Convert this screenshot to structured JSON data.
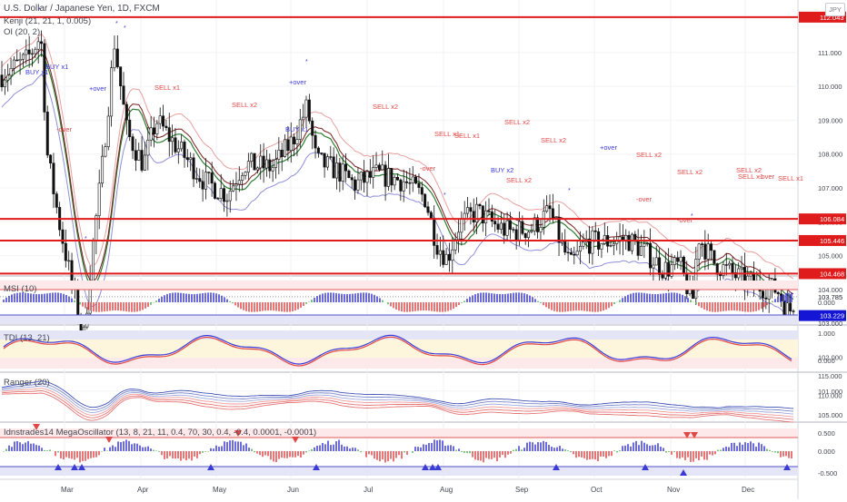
{
  "header": {
    "title": "U.S. Dollar / Japanese Yen, 1D, FXCM",
    "currency_badge": "JPY",
    "indicator_kenji": "Kenji (21, 21, 1, 0.005)",
    "indicator_oi": "OI (20, 2)"
  },
  "panes": {
    "msi": "MSI (10)",
    "tdi": "TDI (13, 21)",
    "ranger": "Ranger (20)",
    "mega": "Idnstrades14 MegaOscillator (13, 8, 21, 11, 0.4, 70, 30, 0.4, -0.4, 0.0001, -0.0001)"
  },
  "chart_data": {
    "type": "candlestick",
    "title": "U.S. Dollar / Japanese Yen, 1D, FXCM",
    "x_month_labels": [
      "Mar",
      "Apr",
      "May",
      "Jun",
      "Jul",
      "Aug",
      "Sep",
      "Oct",
      "Nov",
      "Dec"
    ],
    "price_axis": {
      "ticks": [
        "111.000",
        "110.000",
        "109.000",
        "108.000",
        "107.000",
        "106.000",
        "105.000",
        "104.000",
        "103.000",
        "102.000",
        "101.000"
      ],
      "range": [
        100.5,
        112.5
      ]
    },
    "horizontal_levels": [
      {
        "value": 112.043,
        "label": "112.043",
        "color": "#e01b1b"
      },
      {
        "value": 106.084,
        "label": "106.084",
        "color": "#e01b1b"
      },
      {
        "value": 105.446,
        "label": "105.446",
        "color": "#e01b1b"
      },
      {
        "value": 104.468,
        "label": "104.468",
        "color": "#e01b1b"
      },
      {
        "value": 103.229,
        "label": "103.229",
        "color": "#1515d6"
      }
    ],
    "last_price": {
      "value": 103.785,
      "label": "103.785"
    },
    "signals": [
      {
        "text": "BUY x1",
        "color": "#3b3bd6"
      },
      {
        "text": "BUY x1",
        "color": "#3b3bd6"
      },
      {
        "text": "+over",
        "color": "#3b3bd6"
      },
      {
        "text": "-over",
        "color": "#e04848"
      },
      {
        "text": "SELL x1",
        "color": "#e04848"
      },
      {
        "text": "SELL x2",
        "color": "#e04848"
      },
      {
        "text": "+over",
        "color": "#3b3bd6"
      },
      {
        "text": "BUY x1",
        "color": "#3b3bd6"
      },
      {
        "text": "SELL x2",
        "color": "#e04848"
      },
      {
        "text": "SELL x1",
        "color": "#e04848"
      },
      {
        "text": "SELL x1",
        "color": "#e04848"
      },
      {
        "text": "SELL x2",
        "color": "#e04848"
      },
      {
        "text": "SELL x2",
        "color": "#e04848"
      },
      {
        "text": "-over",
        "color": "#e04848"
      },
      {
        "text": "BUY x2",
        "color": "#3b3bd6"
      },
      {
        "text": "-over",
        "color": "#e04848"
      },
      {
        "text": "SELL x2",
        "color": "#e04848"
      },
      {
        "text": "+over",
        "color": "#3b3bd6"
      },
      {
        "text": "SELL x2",
        "color": "#e04848"
      },
      {
        "text": "SELL x1",
        "color": "#e04848"
      },
      {
        "text": "-over",
        "color": "#e04848"
      },
      {
        "text": "SELL x2",
        "color": "#e04848"
      },
      {
        "text": "SELL x1",
        "color": "#e04848"
      },
      {
        "text": "SELL x2",
        "color": "#e04848"
      },
      {
        "text": "-over",
        "color": "#e04848"
      }
    ],
    "msi_axis": [
      "0.000"
    ],
    "tdi_axis": [
      "1.000",
      "0.000"
    ],
    "ranger_axis": [
      "115.000",
      "110.000",
      "105.000"
    ],
    "mega_axis": [
      "0.500",
      "0.000",
      "-0.500"
    ]
  },
  "colors": {
    "up": "#ffffff",
    "down": "#111111",
    "red_line": "#e01b1b",
    "blue_line": "#1515d6",
    "ma": "#2e7d32",
    "band": "#e8a0a0"
  }
}
